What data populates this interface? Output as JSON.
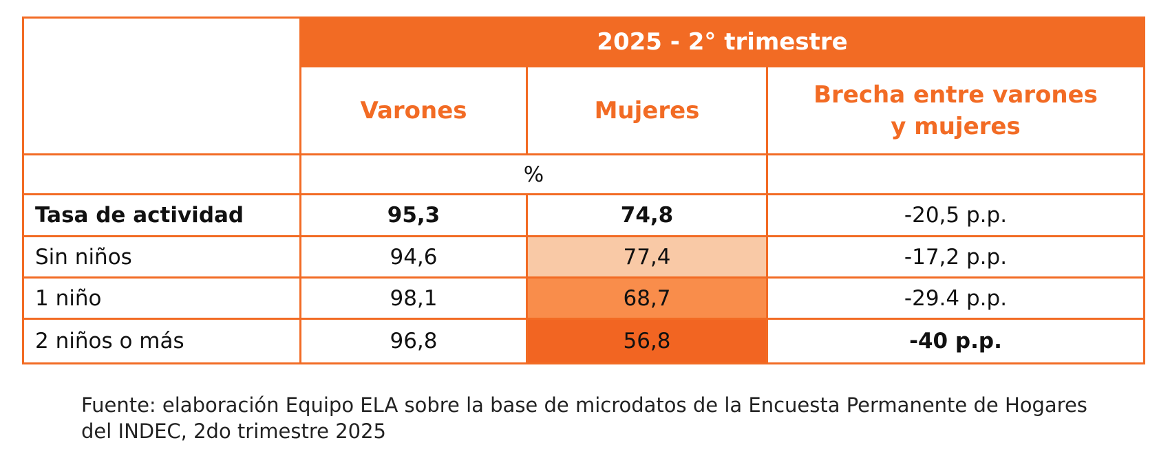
{
  "header": {
    "title": "2025 - 2° trimestre"
  },
  "table": {
    "columns": [
      "Varones",
      "Mujeres",
      "Brecha entre varones y mujeres"
    ],
    "unit": "%",
    "rows": [
      [
        "Tasa de actividad",
        "95,3",
        "74,8",
        "-20,5 p.p."
      ],
      [
        "Sin niños",
        "94,6",
        "77,4",
        "-17,2 p.p."
      ],
      [
        "1 niño",
        "98,1",
        "68,7",
        "-29.4 p.p."
      ],
      [
        "2 niños o más",
        "96,8",
        "56,8",
        "-40 p.p."
      ]
    ]
  },
  "footnote": [
    "Fuente: elaboración Equipo ELA sobre la base de microdatos de la Encuesta Permanente de Hogares",
    "del INDEC, 2do trimestre 2025"
  ]
}
